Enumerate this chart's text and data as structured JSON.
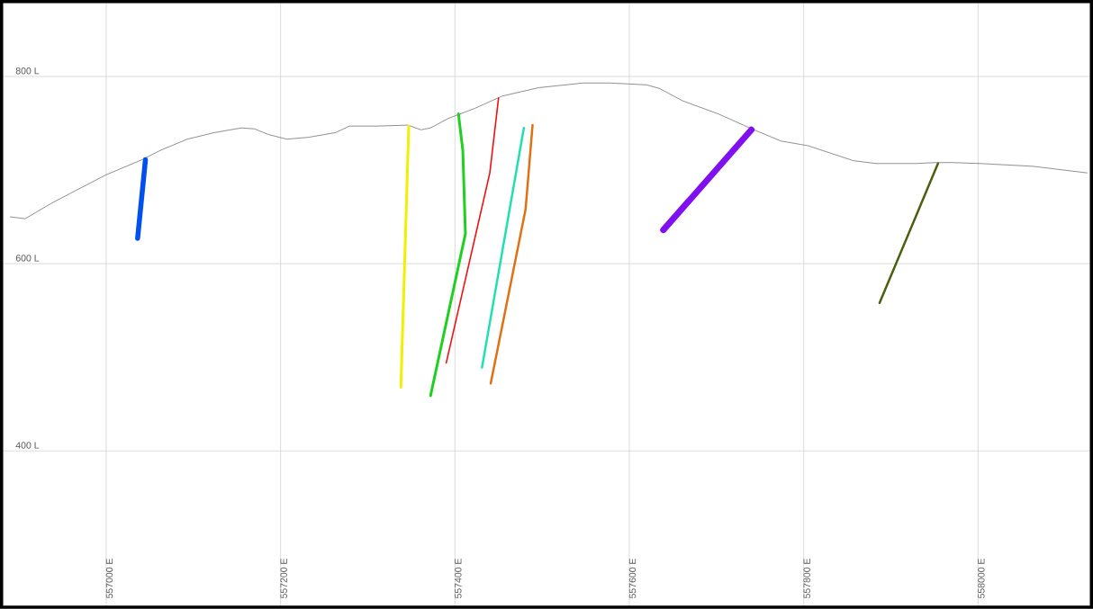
{
  "chart_data": {
    "type": "line",
    "xlim": [
      556880,
      558130
    ],
    "ylim": [
      233,
      880
    ],
    "xticks": [
      {
        "value": 557000,
        "label": "557000 E"
      },
      {
        "value": 557200,
        "label": "557200 E"
      },
      {
        "value": 557400,
        "label": "557400 E"
      },
      {
        "value": 557600,
        "label": "557600 E"
      },
      {
        "value": 557800,
        "label": "557800 E"
      },
      {
        "value": 558000,
        "label": "558000 E"
      }
    ],
    "yticks": [
      {
        "value": 400,
        "label": "400 L"
      },
      {
        "value": 600,
        "label": "600 L"
      },
      {
        "value": 800,
        "label": "800 L"
      }
    ],
    "grid": true,
    "marker": "none",
    "line_style": "solid",
    "series": [
      {
        "color": "#606060",
        "x": [
          556890,
          556907,
          556938,
          557000,
          557041,
          557062,
          557093,
          557124,
          557155,
          557170,
          557186,
          557207,
          557232,
          557263,
          557279,
          557310,
          557346,
          557361,
          557372,
          557392,
          557423,
          557454,
          557496,
          557547,
          557578,
          557620,
          557635,
          557661,
          557702,
          557743,
          557774,
          557805,
          557857,
          557883,
          557909,
          557929,
          557950,
          557971,
          558002,
          558063,
          558125
        ],
        "values": [
          650,
          648,
          665,
          695,
          711,
          721,
          733,
          740,
          745,
          744,
          738,
          733,
          735,
          740,
          747,
          747,
          748,
          743,
          745,
          755,
          766,
          779,
          788,
          793,
          793,
          791,
          787,
          774,
          760,
          743,
          731,
          726,
          710,
          707,
          707,
          707,
          708,
          708,
          707,
          704,
          697
        ]
      },
      {
        "color": "#0050f0",
        "x": [
          557045,
          557036
        ],
        "values": [
          711,
          627
        ]
      },
      {
        "color": "#f0f000",
        "x": [
          557347,
          557338
        ],
        "values": [
          747,
          468
        ]
      },
      {
        "color": "#20d020",
        "x": [
          557404,
          557409,
          557412,
          557372
        ],
        "values": [
          760,
          721,
          632,
          459
        ]
      },
      {
        "color": "#f01010",
        "x": [
          557450,
          557440,
          557390
        ],
        "values": [
          777,
          697,
          494
        ]
      },
      {
        "color": "#20e0b0",
        "x": [
          557479,
          557431
        ],
        "values": [
          745,
          489
        ]
      },
      {
        "color": "#e07010",
        "x": [
          557489,
          557481,
          557441
        ],
        "values": [
          748,
          658,
          472
        ]
      },
      {
        "color": "#8010f0",
        "x": [
          557740,
          557639
        ],
        "values": [
          743,
          636
        ]
      },
      {
        "color": "#4a6010",
        "x": [
          557954,
          557887
        ],
        "values": [
          707,
          558
        ]
      }
    ]
  }
}
